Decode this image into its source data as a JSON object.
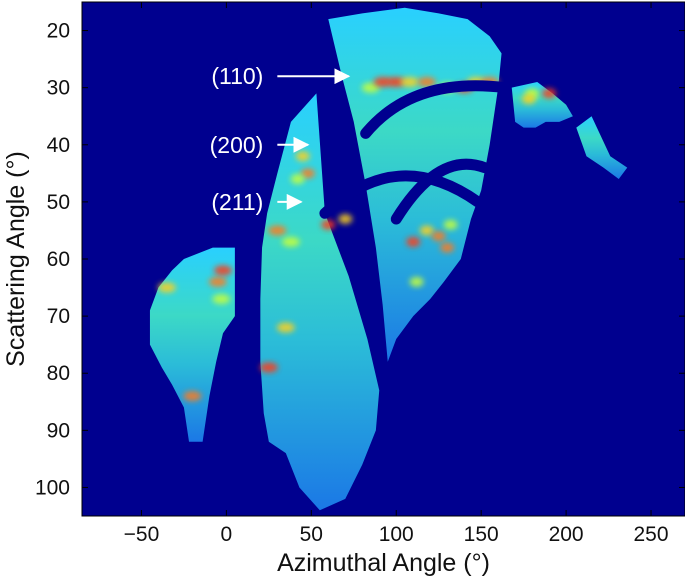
{
  "chart_data": {
    "type": "heatmap",
    "xlabel": "Azimuthal Angle  (°)",
    "ylabel": "Scattering Angle  (°)",
    "xlim": [
      -85,
      270
    ],
    "ylim": [
      15,
      105
    ],
    "y_reversed": true,
    "x_ticks": [
      -50,
      0,
      50,
      100,
      150,
      200,
      250
    ],
    "x_tick_labels": [
      "−50",
      "0",
      "50",
      "100",
      "150",
      "200",
      "250"
    ],
    "y_ticks": [
      20,
      30,
      40,
      50,
      60,
      70,
      80,
      90,
      100
    ],
    "y_tick_labels": [
      "20",
      "30",
      "40",
      "50",
      "60",
      "70",
      "80",
      "90",
      "100"
    ],
    "colormap": "jet",
    "background_color": "#00008f",
    "panels": [
      {
        "name": "far-left",
        "points": [
          [
            -45,
            69
          ],
          [
            -40,
            65
          ],
          [
            -32,
            62
          ],
          [
            -25,
            60
          ],
          [
            -8,
            58
          ],
          [
            5,
            58
          ],
          [
            5,
            70
          ],
          [
            -2,
            73
          ],
          [
            -6,
            78
          ],
          [
            -10,
            84
          ],
          [
            -14,
            92
          ],
          [
            -22,
            92
          ],
          [
            -25,
            86
          ],
          [
            -32,
            82
          ],
          [
            -38,
            79
          ],
          [
            -45,
            75
          ]
        ]
      },
      {
        "name": "middle-left",
        "points": [
          [
            38,
            36
          ],
          [
            47,
            33
          ],
          [
            53,
            31
          ],
          [
            58,
            52
          ],
          [
            72,
            63
          ],
          [
            83,
            74
          ],
          [
            90,
            83
          ],
          [
            88,
            90
          ],
          [
            80,
            96
          ],
          [
            70,
            102
          ],
          [
            55,
            104
          ],
          [
            43,
            100
          ],
          [
            35,
            94
          ],
          [
            25,
            92
          ],
          [
            22,
            87
          ],
          [
            20,
            78
          ],
          [
            20,
            67
          ],
          [
            21,
            58
          ],
          [
            24,
            52
          ],
          [
            30,
            45
          ]
        ]
      },
      {
        "name": "middle-center",
        "points": [
          [
            60,
            18
          ],
          [
            80,
            17
          ],
          [
            105,
            16
          ],
          [
            125,
            17
          ],
          [
            142,
            18
          ],
          [
            155,
            21
          ],
          [
            162,
            24
          ],
          [
            160,
            30
          ],
          [
            155,
            40
          ],
          [
            150,
            48
          ],
          [
            144,
            53
          ],
          [
            138,
            60
          ],
          [
            128,
            64
          ],
          [
            120,
            67
          ],
          [
            110,
            70
          ],
          [
            100,
            74
          ],
          [
            95,
            78
          ],
          [
            92,
            68
          ],
          [
            88,
            58
          ],
          [
            82,
            47
          ],
          [
            75,
            36
          ],
          [
            68,
            28
          ]
        ]
      },
      {
        "name": "right-strip",
        "points": [
          [
            168,
            30
          ],
          [
            183,
            29
          ],
          [
            192,
            31
          ],
          [
            200,
            33
          ],
          [
            204,
            35
          ],
          [
            196,
            36
          ],
          [
            188,
            36
          ],
          [
            182,
            37
          ],
          [
            175,
            37
          ],
          [
            170,
            36
          ]
        ]
      },
      {
        "name": "far-right-strip",
        "points": [
          [
            206,
            37
          ],
          [
            215,
            35
          ],
          [
            226,
            42
          ],
          [
            236,
            44
          ],
          [
            231,
            46
          ],
          [
            222,
            44
          ],
          [
            212,
            42
          ]
        ]
      }
    ],
    "gap_bands": [
      {
        "name": "arc-110-gap",
        "from": [
          82,
          38
        ],
        "control": [
          110,
          28
        ],
        "to": [
          164,
          30
        ]
      },
      {
        "name": "arc-200-gap",
        "from": [
          100,
          53
        ],
        "control": [
          125,
          41
        ],
        "to": [
          152,
          44
        ]
      },
      {
        "name": "arc-211-gap",
        "from": [
          58,
          52
        ],
        "control": [
          100,
          40
        ],
        "to": [
          148,
          50
        ]
      }
    ],
    "annotations": [
      {
        "label": "(110)",
        "arrow_from": [
          30,
          28
        ],
        "arrow_to": [
          72,
          28
        ]
      },
      {
        "label": "(200)",
        "arrow_from": [
          30,
          40
        ],
        "arrow_to": [
          48,
          40
        ]
      },
      {
        "label": "(211)",
        "arrow_from": [
          30,
          50
        ],
        "arrow_to": [
          44,
          50
        ]
      }
    ]
  }
}
